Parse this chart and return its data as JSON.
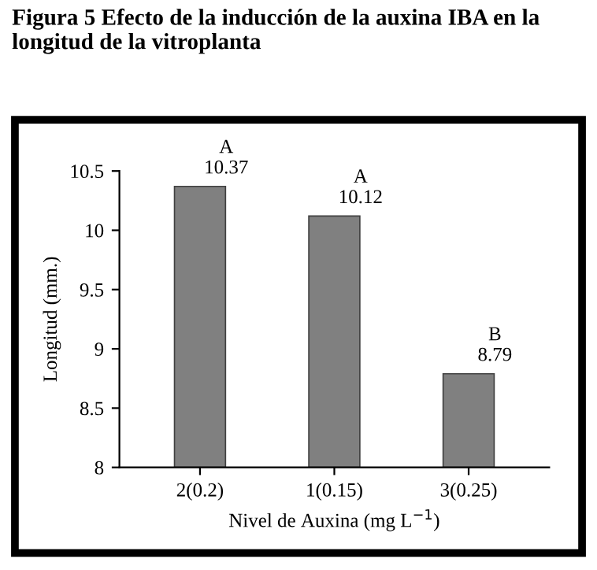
{
  "chart_data": {
    "type": "bar",
    "title": "Figura 5 Efecto de la inducción de la auxina IBA en la longitud de la vitroplanta",
    "categories": [
      "2(0.2)",
      "1(0.15)",
      "3(0.25)"
    ],
    "values": [
      10.37,
      10.12,
      8.79
    ],
    "value_labels": [
      "A\n10.37",
      "A\n10.12",
      "B\n8.79"
    ],
    "color": "#808080",
    "xlabel": "Nivel de Auxina (mg L$^{−1}$)",
    "ylabel": "Longitud (mm.)",
    "ylim": [
      8,
      10.5
    ],
    "yticks": [
      8,
      8.5,
      9,
      9.5,
      10,
      10.5
    ],
    "grid": false,
    "legend": false
  }
}
